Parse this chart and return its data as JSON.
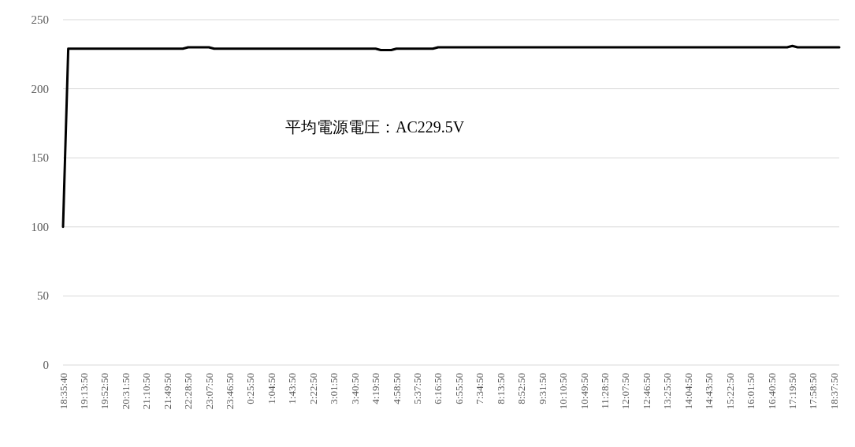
{
  "chart_data": {
    "type": "line",
    "grid": "y",
    "ylim": [
      0,
      250
    ],
    "yticks": [
      0,
      50,
      100,
      150,
      200,
      250
    ],
    "categories": [
      "18:35:40",
      null,
      null,
      null,
      "19:13:50",
      null,
      null,
      null,
      "19:52:50",
      null,
      null,
      null,
      "20:31:50",
      null,
      null,
      null,
      "21:10:50",
      null,
      null,
      null,
      "21:49:50",
      null,
      null,
      null,
      "22:28:50",
      null,
      null,
      null,
      "23:07:50",
      null,
      null,
      null,
      "23:46:50",
      null,
      null,
      null,
      "0:25:50",
      null,
      null,
      null,
      "1:04:50",
      null,
      null,
      null,
      "1:43:50",
      null,
      null,
      null,
      "2:22:50",
      null,
      null,
      null,
      "3:01:50",
      null,
      null,
      null,
      "3:40:50",
      null,
      null,
      null,
      "4:19:50",
      null,
      null,
      null,
      "4:58:50",
      null,
      null,
      null,
      "5:37:50",
      null,
      null,
      null,
      "6:16:50",
      null,
      null,
      null,
      "6:55:50",
      null,
      null,
      null,
      "7:34:50",
      null,
      null,
      null,
      "8:13:50",
      null,
      null,
      null,
      "8:52:50",
      null,
      null,
      null,
      "9:31:50",
      null,
      null,
      null,
      "10:10:50",
      null,
      null,
      null,
      "10:49:50",
      null,
      null,
      null,
      "11:28:50",
      null,
      null,
      null,
      "12:07:50",
      null,
      null,
      null,
      "12:46:50",
      null,
      null,
      null,
      "13:25:50",
      null,
      null,
      null,
      "14:04:50",
      null,
      null,
      null,
      "14:43:50",
      null,
      null,
      null,
      "15:22:50",
      null,
      null,
      null,
      "16:01:50",
      null,
      null,
      null,
      "16:40:50",
      null,
      null,
      null,
      "17:19:50",
      null,
      null,
      null,
      "17:58:50",
      null,
      null,
      null,
      "18:37:50",
      null
    ],
    "annotations": [
      "平均電源電圧：AC229.5V"
    ],
    "series": [
      {
        "color": "#000000",
        "values": [
          100,
          229,
          229,
          229,
          229,
          229,
          229,
          229,
          229,
          229,
          229,
          229,
          229,
          229,
          229,
          229,
          229,
          229,
          229,
          229,
          229,
          229,
          229,
          229,
          230,
          230,
          230,
          230,
          230,
          229,
          229,
          229,
          229,
          229,
          229,
          229,
          229,
          229,
          229,
          229,
          229,
          229,
          229,
          229,
          229,
          229,
          229,
          229,
          229,
          229,
          229,
          229,
          229,
          229,
          229,
          229,
          229,
          229,
          229,
          229,
          229,
          228,
          228,
          228,
          229,
          229,
          229,
          229,
          229,
          229,
          229,
          229,
          230,
          230,
          230,
          230,
          230,
          230,
          230,
          230,
          230,
          230,
          230,
          230,
          230,
          230,
          230,
          230,
          230,
          230,
          230,
          230,
          230,
          230,
          230,
          230,
          230,
          230,
          230,
          230,
          230,
          230,
          230,
          230,
          230,
          230,
          230,
          230,
          230,
          230,
          230,
          230,
          230,
          230,
          230,
          230,
          230,
          230,
          230,
          230,
          230,
          230,
          230,
          230,
          230,
          230,
          230,
          230,
          230,
          230,
          230,
          230,
          230,
          230,
          230,
          230,
          230,
          230,
          230,
          230,
          231,
          230,
          230,
          230,
          230,
          230,
          230,
          230,
          230,
          230
        ]
      }
    ]
  }
}
